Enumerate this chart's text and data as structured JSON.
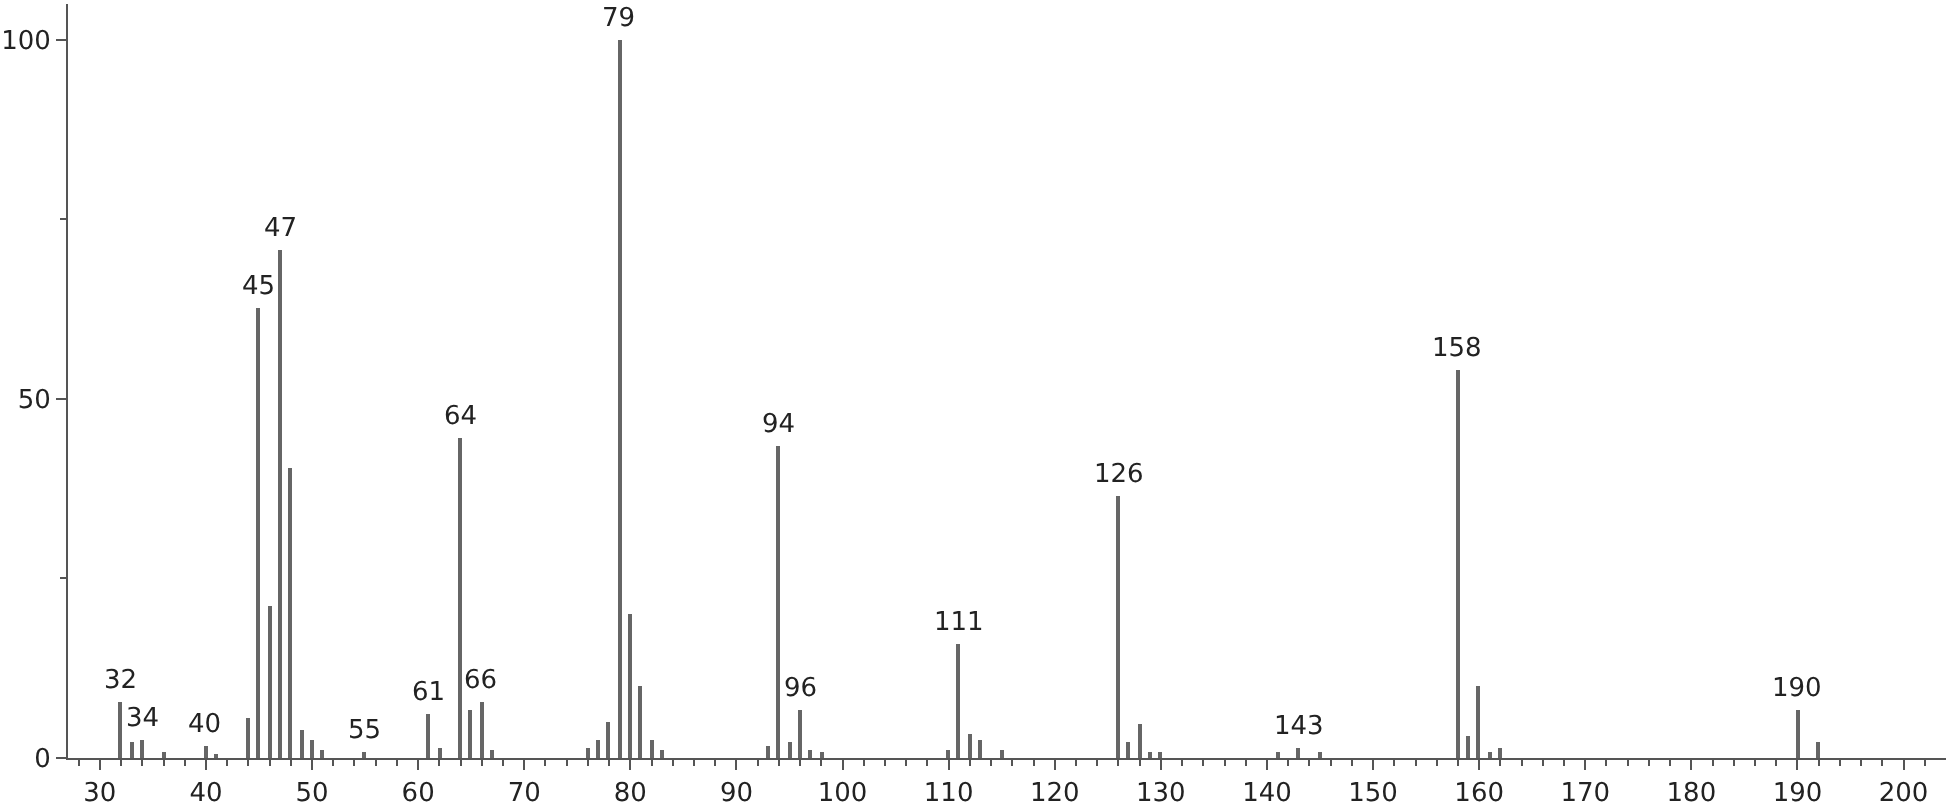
{
  "chart_data": {
    "type": "bar",
    "x": [
      32,
      33,
      34,
      36,
      40,
      41,
      44,
      45,
      46,
      47,
      48,
      49,
      50,
      51,
      55,
      61,
      62,
      64,
      65,
      66,
      67,
      76,
      77,
      78,
      79,
      80,
      81,
      82,
      83,
      93,
      94,
      95,
      96,
      97,
      98,
      110,
      111,
      112,
      113,
      115,
      126,
      127,
      128,
      129,
      130,
      141,
      143,
      145,
      158,
      159,
      160,
      161,
      162,
      190,
      192
    ],
    "values": [
      7.7,
      2.2,
      2.6,
      0.8,
      1.6,
      0.5,
      5.7,
      62.8,
      21.1,
      70.8,
      40.4,
      4.0,
      2.4,
      1.1,
      0.7,
      6.2,
      1.4,
      44.6,
      6.6,
      7.7,
      1.1,
      1.4,
      2.5,
      4.9,
      100,
      20.0,
      10.1,
      2.4,
      1.1,
      1.7,
      43.4,
      2.2,
      6.7,
      1.1,
      0.8,
      1.1,
      16.0,
      3.4,
      2.4,
      1.1,
      36.6,
      2.2,
      4.6,
      0.8,
      0.7,
      0.8,
      1.5,
      0.8,
      54.1,
      3.2,
      10.1,
      0.7,
      1.4,
      6.8,
      2.2
    ],
    "annotations": [
      {
        "text": "32",
        "x": 32,
        "y": 7.7
      },
      {
        "text": "34",
        "x": 34,
        "y": 2.6
      },
      {
        "text": "40",
        "x": 40,
        "y": 1.6
      },
      {
        "text": "45",
        "x": 45,
        "y": 62.8
      },
      {
        "text": "47",
        "x": 47,
        "y": 70.8
      },
      {
        "text": "55",
        "x": 55,
        "y": 0.7
      },
      {
        "text": "61",
        "x": 61,
        "y": 6.2
      },
      {
        "text": "64",
        "x": 64,
        "y": 44.6
      },
      {
        "text": "66",
        "x": 66,
        "y": 7.7
      },
      {
        "text": "79",
        "x": 79,
        "y": 100
      },
      {
        "text": "94",
        "x": 94,
        "y": 43.4
      },
      {
        "text": "96",
        "x": 96,
        "y": 6.7
      },
      {
        "text": "111",
        "x": 111,
        "y": 16.0
      },
      {
        "text": "126",
        "x": 126,
        "y": 36.6
      },
      {
        "text": "143",
        "x": 143,
        "y": 1.5
      },
      {
        "text": "158",
        "x": 158,
        "y": 54.1
      },
      {
        "text": "190",
        "x": 190,
        "y": 6.8
      }
    ],
    "color": "#666666",
    "xlim": [
      27,
      204
    ],
    "xticks": [
      {
        "value": 28,
        "label": null
      },
      30,
      {
        "value": 32,
        "label": null
      },
      {
        "value": 34,
        "label": null
      },
      {
        "value": 36,
        "label": null
      },
      {
        "value": 38,
        "label": null
      },
      40,
      {
        "value": 42,
        "label": null
      },
      {
        "value": 44,
        "label": null
      },
      {
        "value": 46,
        "label": null
      },
      {
        "value": 48,
        "label": null
      },
      50,
      {
        "value": 52,
        "label": null
      },
      {
        "value": 54,
        "label": null
      },
      {
        "value": 56,
        "label": null
      },
      {
        "value": 58,
        "label": null
      },
      60,
      {
        "value": 62,
        "label": null
      },
      {
        "value": 64,
        "label": null
      },
      {
        "value": 66,
        "label": null
      },
      {
        "value": 68,
        "label": null
      },
      70,
      {
        "value": 72,
        "label": null
      },
      {
        "value": 74,
        "label": null
      },
      {
        "value": 76,
        "label": null
      },
      {
        "value": 78,
        "label": null
      },
      80,
      {
        "value": 82,
        "label": null
      },
      {
        "value": 84,
        "label": null
      },
      {
        "value": 86,
        "label": null
      },
      {
        "value": 88,
        "label": null
      },
      90,
      {
        "value": 92,
        "label": null
      },
      {
        "value": 94,
        "label": null
      },
      {
        "value": 96,
        "label": null
      },
      {
        "value": 98,
        "label": null
      },
      100,
      {
        "value": 102,
        "label": null
      },
      {
        "value": 104,
        "label": null
      },
      {
        "value": 106,
        "label": null
      },
      {
        "value": 108,
        "label": null
      },
      110,
      {
        "value": 112,
        "label": null
      },
      {
        "value": 114,
        "label": null
      },
      {
        "value": 116,
        "label": null
      },
      {
        "value": 118,
        "label": null
      },
      120,
      {
        "value": 122,
        "label": null
      },
      {
        "value": 124,
        "label": null
      },
      {
        "value": 126,
        "label": null
      },
      {
        "value": 128,
        "label": null
      },
      130,
      {
        "value": 132,
        "label": null
      },
      {
        "value": 134,
        "label": null
      },
      {
        "value": 136,
        "label": null
      },
      {
        "value": 138,
        "label": null
      },
      140,
      {
        "value": 142,
        "label": null
      },
      {
        "value": 144,
        "label": null
      },
      {
        "value": 146,
        "label": null
      },
      {
        "value": 148,
        "label": null
      },
      150,
      {
        "value": 152,
        "label": null
      },
      {
        "value": 154,
        "label": null
      },
      {
        "value": 156,
        "label": null
      },
      {
        "value": 158,
        "label": null
      },
      160,
      {
        "value": 162,
        "label": null
      },
      {
        "value": 164,
        "label": null
      },
      {
        "value": 166,
        "label": null
      },
      {
        "value": 168,
        "label": null
      },
      170,
      {
        "value": 172,
        "label": null
      },
      {
        "value": 174,
        "label": null
      },
      {
        "value": 176,
        "label": null
      },
      {
        "value": 178,
        "label": null
      },
      180,
      {
        "value": 182,
        "label": null
      },
      {
        "value": 184,
        "label": null
      },
      {
        "value": 186,
        "label": null
      },
      {
        "value": 188,
        "label": null
      },
      190,
      {
        "value": 192,
        "label": null
      },
      {
        "value": 194,
        "label": null
      },
      {
        "value": 196,
        "label": null
      },
      {
        "value": 198,
        "label": null
      },
      200,
      {
        "value": 202,
        "label": null
      }
    ],
    "ylim": [
      0,
      105
    ],
    "yticks": [
      0,
      {
        "value": 25,
        "label": null
      },
      50,
      {
        "value": 75,
        "label": null
      },
      100
    ]
  }
}
